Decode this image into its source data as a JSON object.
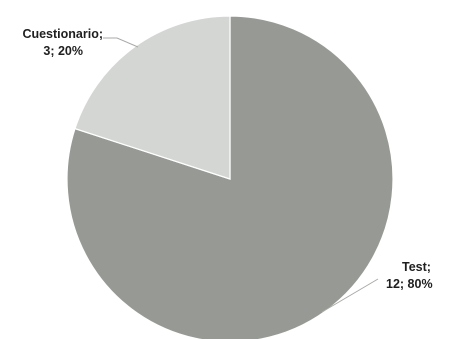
{
  "chart_data": {
    "type": "pie",
    "categories": [
      "Test",
      "Cuestionario"
    ],
    "values": [
      12,
      3
    ],
    "percents": [
      80,
      20
    ],
    "colors": [
      "#979a94",
      "#d4d6d3"
    ],
    "labels": [
      {
        "line1": "Test;",
        "line2": "12; 80%"
      },
      {
        "line1": "Cuestionario;",
        "line2": "3; 20%"
      }
    ],
    "legend": "none"
  }
}
